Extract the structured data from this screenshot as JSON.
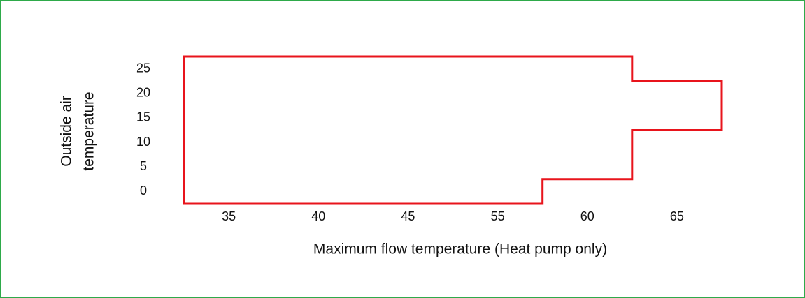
{
  "chart_data": {
    "type": "line",
    "xlabel": "Maximum flow temperature (Heat pump only)",
    "ylabel": [
      "Outside air",
      "temperature"
    ],
    "xticks": [
      35,
      40,
      45,
      55,
      60,
      65
    ],
    "yticks": [
      0,
      5,
      10,
      15,
      20,
      25
    ],
    "xlim": [
      32.5,
      67.5
    ],
    "ylim": [
      -2.5,
      27.5
    ],
    "closed": true,
    "series": [
      {
        "color": "#e8141c",
        "x": [
          32.5,
          32.5,
          62.5,
          62.5,
          67.5,
          67.5,
          62.5,
          62.5,
          57.5,
          57.5
        ],
        "values": [
          -2.5,
          27.5,
          27.5,
          22.5,
          22.5,
          12.5,
          12.5,
          2.5,
          2.5,
          -2.5
        ]
      }
    ]
  }
}
